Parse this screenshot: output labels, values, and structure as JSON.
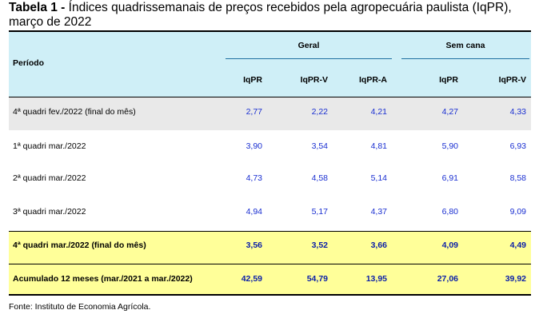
{
  "title": {
    "prefix": "Tabela 1 -",
    "text": "Índices quadrissemanais de preços recebidos pela agropecuária paulista (IqPR),",
    "line2": "março de 2022"
  },
  "header": {
    "period": "Período",
    "group_geral": "Geral",
    "group_semcana": "Sem cana",
    "columns": [
      "IqPR",
      "IqPR-V",
      "IqPR-A",
      "IqPR",
      "IqPR-V"
    ]
  },
  "rows": [
    {
      "label": "4ª quadri fev./2022 (final do mês)",
      "values": [
        "2,77",
        "2,22",
        "4,21",
        "4,27",
        "4,33"
      ],
      "style": "gray"
    },
    {
      "label": "1ª quadri mar./2022",
      "values": [
        "3,90",
        "3,54",
        "4,81",
        "5,90",
        "6,93"
      ],
      "style": "white"
    },
    {
      "label": "2ª quadri mar./2022",
      "values": [
        "4,73",
        "4,58",
        "5,14",
        "6,91",
        "8,58"
      ],
      "style": "white"
    },
    {
      "label": "3ª quadri mar./2022",
      "values": [
        "4,94",
        "5,17",
        "4,37",
        "6,80",
        "9,09"
      ],
      "style": "white"
    },
    {
      "label": "4ª quadri mar./2022 (final do mês)",
      "values": [
        "3,56",
        "3,52",
        "3,66",
        "4,09",
        "4,49"
      ],
      "style": "yellow"
    },
    {
      "label": "Acumulado 12 meses (mar./2021 a mar./2022)",
      "values": [
        "42,59",
        "54,79",
        "13,95",
        "27,06",
        "39,92"
      ],
      "style": "yellow"
    }
  ],
  "source": "Fonte: Instituto de Economia Agrícola.",
  "colors": {
    "header_bg": "#cfeff7",
    "highlight_gray": "#e9e9e9",
    "highlight_yellow": "#ffff99",
    "number_blue": "#1a2fd1"
  }
}
